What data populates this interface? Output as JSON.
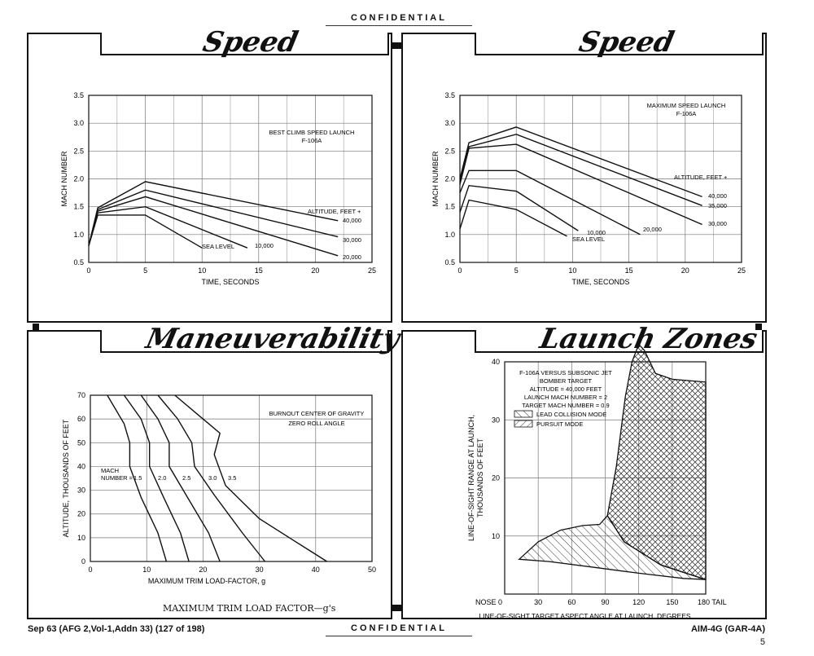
{
  "header": {
    "confidential": "CONFIDENTIAL"
  },
  "footer": {
    "left": "Sep 63 (AFG 2,Vol-1,Addn 33)  (127 of 198)",
    "confidential": "CONFIDENTIAL",
    "right": "AIM-4G (GAR-4A)",
    "page": "5"
  },
  "panels": {
    "tl_title": "Speed",
    "tr_title": "Speed",
    "bl_title": "Maneuverability",
    "br_title": "Launch Zones",
    "bl_caption": "MAXIMUM TRIM LOAD FACTOR—g's"
  },
  "chart_data": [
    {
      "type": "line",
      "xlabel": "TIME, SECONDS",
      "ylabel": "MACH NUMBER",
      "xlim": [
        0,
        25
      ],
      "ylim": [
        0.5,
        3.5
      ],
      "xticks": [
        "0",
        "5",
        "10",
        "15",
        "20",
        "25"
      ],
      "yticks": [
        "0.5",
        "1.0",
        "1.5",
        "2.0",
        "2.5",
        "3.0",
        "3.5"
      ],
      "annotations": [
        "BEST CLIMB SPEED LAUNCH",
        "F-106A",
        "ALTITUDE, FEET +"
      ],
      "series": [
        {
          "name": "40,000",
          "points": [
            [
              0,
              0.8
            ],
            [
              0.8,
              1.48
            ],
            [
              5,
              1.95
            ],
            [
              22,
              1.25
            ]
          ]
        },
        {
          "name": "30,000",
          "points": [
            [
              0,
              0.8
            ],
            [
              0.8,
              1.45
            ],
            [
              5,
              1.8
            ],
            [
              22,
              0.96
            ]
          ]
        },
        {
          "name": "20,000",
          "points": [
            [
              0,
              0.8
            ],
            [
              0.8,
              1.42
            ],
            [
              5,
              1.68
            ],
            [
              22,
              0.62
            ]
          ]
        },
        {
          "name": "10,000",
          "points": [
            [
              0,
              0.8
            ],
            [
              0.8,
              1.39
            ],
            [
              5,
              1.5
            ],
            [
              14,
              0.76
            ]
          ]
        },
        {
          "name": "SEA LEVEL",
          "points": [
            [
              0,
              0.8
            ],
            [
              0.8,
              1.35
            ],
            [
              5,
              1.35
            ],
            [
              10,
              0.76
            ]
          ]
        }
      ]
    },
    {
      "type": "line",
      "xlabel": "TIME, SECONDS",
      "ylabel": "MACH NUMBER",
      "xlim": [
        0,
        25
      ],
      "ylim": [
        0.5,
        3.5
      ],
      "xticks": [
        "0",
        "5",
        "10",
        "15",
        "20",
        "25"
      ],
      "yticks": [
        "0.5",
        "1.0",
        "1.5",
        "2.0",
        "2.5",
        "3.0",
        "3.5"
      ],
      "annotations": [
        "MAXIMUM SPEED LAUNCH",
        "F-106A",
        "ALTITUDE, FEET +"
      ],
      "series": [
        {
          "name": "40,000",
          "points": [
            [
              0,
              2.0
            ],
            [
              0.8,
              2.65
            ],
            [
              5,
              2.93
            ],
            [
              21.5,
              1.68
            ]
          ]
        },
        {
          "name": "35,000",
          "points": [
            [
              0,
              1.95
            ],
            [
              0.8,
              2.58
            ],
            [
              5,
              2.8
            ],
            [
              21.5,
              1.52
            ]
          ]
        },
        {
          "name": "30,000",
          "points": [
            [
              0,
              1.9
            ],
            [
              0.8,
              2.55
            ],
            [
              5,
              2.62
            ],
            [
              21.5,
              1.18
            ]
          ]
        },
        {
          "name": "20,000",
          "points": [
            [
              0,
              1.75
            ],
            [
              0.8,
              2.15
            ],
            [
              5,
              2.15
            ],
            [
              16,
              1.0
            ]
          ]
        },
        {
          "name": "10,000",
          "points": [
            [
              0,
              1.4
            ],
            [
              0.8,
              1.88
            ],
            [
              5,
              1.78
            ],
            [
              10.5,
              1.07
            ]
          ]
        },
        {
          "name": "SEA LEVEL",
          "points": [
            [
              0,
              1.1
            ],
            [
              0.8,
              1.62
            ],
            [
              5,
              1.45
            ],
            [
              9.5,
              0.97
            ]
          ]
        }
      ]
    },
    {
      "type": "line",
      "xlabel": "MAXIMUM TRIM LOAD-FACTOR, g",
      "ylabel": "ALTITUDE, THOUSANDS OF FEET",
      "xlim": [
        0,
        50
      ],
      "ylim": [
        0,
        70
      ],
      "xticks": [
        "0",
        "10",
        "20",
        "30",
        "40",
        "50"
      ],
      "yticks": [
        "0",
        "10",
        "20",
        "30",
        "40",
        "50",
        "60",
        "70"
      ],
      "annotations": [
        "BURNOUT CENTER OF GRAVITY",
        "ZERO ROLL ANGLE",
        "MACH",
        "NUMBER ="
      ],
      "series": [
        {
          "name": "1.5",
          "points": [
            [
              3,
              70
            ],
            [
              6,
              58
            ],
            [
              7,
              50
            ],
            [
              7,
              40
            ],
            [
              9,
              27
            ],
            [
              12,
              12
            ],
            [
              13.5,
              0
            ]
          ]
        },
        {
          "name": "2.0",
          "points": [
            [
              6,
              70
            ],
            [
              9,
              60
            ],
            [
              10.5,
              50
            ],
            [
              10.5,
              40
            ],
            [
              13,
              27
            ],
            [
              16,
              12
            ],
            [
              17.5,
              0
            ]
          ]
        },
        {
          "name": "2.5",
          "points": [
            [
              9,
              70
            ],
            [
              12,
              60
            ],
            [
              14,
              50
            ],
            [
              14,
              40
            ],
            [
              17,
              28
            ],
            [
              21,
              12
            ],
            [
              23,
              0
            ]
          ]
        },
        {
          "name": "3.0",
          "points": [
            [
              12,
              70
            ],
            [
              15.5,
              60
            ],
            [
              18,
              50
            ],
            [
              18.5,
              40
            ],
            [
              22,
              28
            ],
            [
              27,
              12
            ],
            [
              31,
              0
            ]
          ]
        },
        {
          "name": "3.5",
          "points": [
            [
              15,
              70
            ],
            [
              19,
              62
            ],
            [
              23,
              54
            ],
            [
              22,
              45
            ],
            [
              24,
              32
            ],
            [
              30,
              18
            ],
            [
              36,
              9
            ],
            [
              42,
              0
            ]
          ]
        }
      ]
    },
    {
      "type": "area",
      "xlabel": "LINE-OF-SIGHT TARGET ASPECT ANGLE AT LAUNCH, DEGREES",
      "ylabel": "LINE-OF-SIGHT RANGE AT LAUNCH, THOUSANDS OF FEET",
      "xlim": [
        0,
        180
      ],
      "ylim": [
        0,
        40
      ],
      "xticks": [
        "NOSE 0",
        "30",
        "60",
        "90",
        "120",
        "150",
        "180 TAIL"
      ],
      "yticks": [
        "10",
        "20",
        "30",
        "40"
      ],
      "annotations": [
        "F-106A VERSUS SUBSONIC JET",
        "BOMBER TARGET",
        "ALTITUDE = 40,000 FEET",
        "LAUNCH MACH NUMBER = 2",
        "TARGET MACH NUMBER = 0.9"
      ],
      "series": [
        {
          "name": "LEAD COLLISION MODE",
          "points": [
            [
              13,
              6
            ],
            [
              30,
              9
            ],
            [
              50,
              11
            ],
            [
              70,
              11.8
            ],
            [
              85,
              12
            ],
            [
              92,
              13.5
            ],
            [
              107,
              9
            ],
            [
              140,
              5
            ],
            [
              180,
              2.5
            ],
            [
              160,
              2.7
            ],
            [
              120,
              3.6
            ],
            [
              80,
              4.6
            ],
            [
              40,
              5.6
            ],
            [
              13,
              6
            ]
          ]
        },
        {
          "name": "PURSUIT MODE",
          "points": [
            [
              92,
              13.5
            ],
            [
              100,
              22
            ],
            [
              108,
              34
            ],
            [
              114,
              40
            ],
            [
              120,
              43
            ],
            [
              125,
              42
            ],
            [
              135,
              38
            ],
            [
              150,
              37
            ],
            [
              180,
              36.5
            ],
            [
              180,
              2.5
            ],
            [
              140,
              5
            ],
            [
              107,
              9
            ],
            [
              92,
              13.5
            ]
          ]
        }
      ]
    }
  ]
}
